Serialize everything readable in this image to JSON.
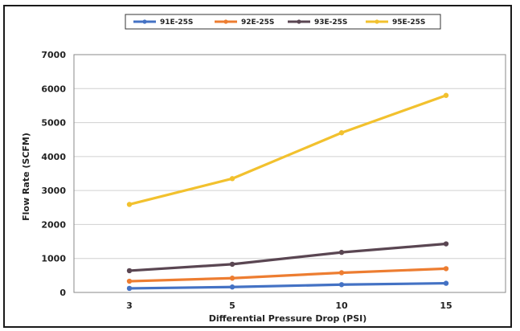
{
  "chart_data": {
    "type": "line",
    "xlabel": "Differential Pressure Drop (PSI)",
    "ylabel": "Flow Rate (SCFM)",
    "x": [
      3,
      5,
      10,
      15
    ],
    "ylim": [
      0,
      7000
    ],
    "yticks": [
      0,
      1000,
      2000,
      3000,
      4000,
      5000,
      6000,
      7000
    ],
    "grid": true,
    "legend_position": "top",
    "series": [
      {
        "name": "91E-25S",
        "color": "#4472C4",
        "values": [
          120,
          160,
          230,
          270
        ]
      },
      {
        "name": "92E-25S",
        "color": "#ED7D31",
        "values": [
          330,
          420,
          580,
          700
        ]
      },
      {
        "name": "93E-25S",
        "color": "#5A4652",
        "values": [
          640,
          830,
          1180,
          1430
        ]
      },
      {
        "name": "95E-25S",
        "color": "#F2C12E",
        "values": [
          2590,
          3350,
          4700,
          5800
        ]
      }
    ]
  }
}
